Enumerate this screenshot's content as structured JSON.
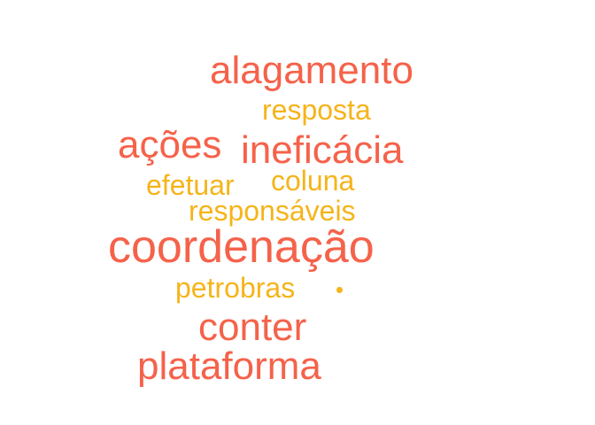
{
  "word_cloud": {
    "colors": {
      "primary": "#f5624a",
      "secondary": "#f5b41a"
    },
    "words": {
      "alagamento": "alagamento",
      "resposta": "resposta",
      "acoes": "ações",
      "ineficacia": "ineficácia",
      "efetuar": "efetuar",
      "coluna": "coluna",
      "responsaveis": "responsáveis",
      "coordenacao": "coordenação",
      "petrobras": "petrobras",
      "conter": "conter",
      "plataforma": "plataforma"
    }
  }
}
